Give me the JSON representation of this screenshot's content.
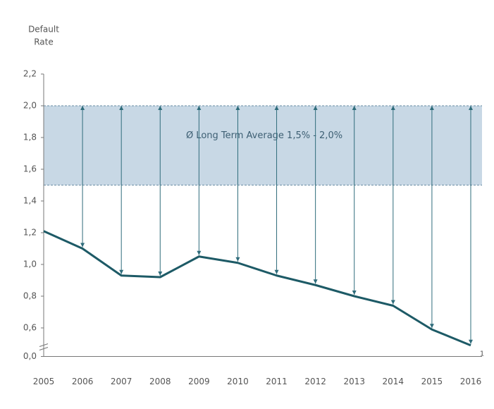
{
  "chart_data": {
    "type": "line",
    "y_label": [
      "Default",
      "Rate"
    ],
    "annotation": "Ø Long Term Average 1,5% - 2,0%",
    "band": [
      1.5,
      2.0
    ],
    "band_color": "#c8d8e5",
    "categories": [
      "2005",
      "2006",
      "2007",
      "2008",
      "2009",
      "2010",
      "2011",
      "2012",
      "2013",
      "2014",
      "2015",
      "2016"
    ],
    "x_axis_end_label": "1",
    "series": [
      {
        "name": "Default Rate",
        "color": "#1d5a66",
        "values": [
          1.21,
          1.1,
          0.93,
          0.92,
          1.05,
          1.01,
          0.93,
          0.87,
          0.8,
          0.74,
          0.59,
          0.49
        ]
      }
    ],
    "ylim": [
      0.42,
      2.2
    ],
    "yticks": [
      {
        "value": 0,
        "label": "0,0"
      },
      {
        "value": 0.6,
        "label": "0,6"
      },
      {
        "value": 0.8,
        "label": "0,8"
      },
      {
        "value": 1.0,
        "label": "1,0"
      },
      {
        "value": 1.2,
        "label": "1,2"
      },
      {
        "value": 1.4,
        "label": "1,4"
      },
      {
        "value": 1.6,
        "label": "1,6"
      },
      {
        "value": 1.8,
        "label": "1,8"
      },
      {
        "value": 2.0,
        "label": "2,0"
      },
      {
        "value": 2.2,
        "label": "2,2"
      }
    ],
    "axis_break": true,
    "arrows": true
  }
}
